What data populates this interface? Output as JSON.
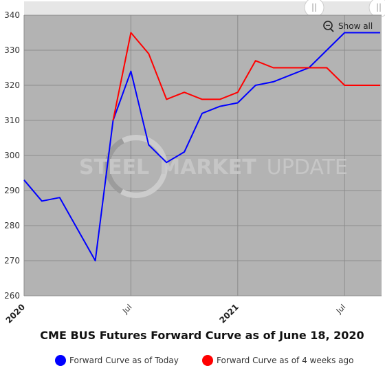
{
  "chart_data": {
    "type": "line",
    "title": "CME BUS Futures Forward Curve as of June 18, 2020",
    "xlabel": "",
    "ylabel": "",
    "ylim": [
      260,
      340
    ],
    "y_ticks": [
      "260",
      "270",
      "280",
      "290",
      "300",
      "310",
      "320",
      "330",
      "340"
    ],
    "x_ticks": [
      {
        "label": "2020",
        "bold": true
      },
      {
        "label": "Jul",
        "bold": false
      },
      {
        "label": "2021",
        "bold": true
      },
      {
        "label": "Jul",
        "bold": false
      }
    ],
    "x_range": [
      "2020-01",
      "2021-09"
    ],
    "grid": true,
    "legend_position": "bottom",
    "series": [
      {
        "name": "Forward Curve as of Today",
        "color": "#0000ff",
        "points": [
          [
            "2020-01",
            293
          ],
          [
            "2020-02",
            287
          ],
          [
            "2020-03",
            288
          ],
          [
            "2020-04",
            279
          ],
          [
            "2020-05",
            270
          ],
          [
            "2020-06",
            310
          ],
          [
            "2020-07",
            324
          ],
          [
            "2020-08",
            303
          ],
          [
            "2020-09",
            298
          ],
          [
            "2020-10",
            301
          ],
          [
            "2020-11",
            312
          ],
          [
            "2020-12",
            314
          ],
          [
            "2021-01",
            315
          ],
          [
            "2021-02",
            320
          ],
          [
            "2021-03",
            321
          ],
          [
            "2021-04",
            323
          ],
          [
            "2021-05",
            325
          ],
          [
            "2021-06",
            330
          ],
          [
            "2021-07",
            335
          ],
          [
            "2021-08",
            335
          ],
          [
            "2021-09",
            335
          ]
        ]
      },
      {
        "name": "Forward Curve as of 4 weeks ago",
        "color": "#ff0000",
        "points": [
          [
            "2020-06",
            310
          ],
          [
            "2020-07",
            335
          ],
          [
            "2020-08",
            329
          ],
          [
            "2020-09",
            316
          ],
          [
            "2020-10",
            318
          ],
          [
            "2020-11",
            316
          ],
          [
            "2020-12",
            316
          ],
          [
            "2021-01",
            318
          ],
          [
            "2021-02",
            327
          ],
          [
            "2021-03",
            325
          ],
          [
            "2021-04",
            325
          ],
          [
            "2021-05",
            325
          ],
          [
            "2021-06",
            325
          ],
          [
            "2021-07",
            320
          ],
          [
            "2021-08",
            320
          ],
          [
            "2021-09",
            320
          ]
        ]
      }
    ]
  },
  "controls": {
    "show_all_label": "Show all",
    "zoom_icon": "zoom-out-icon",
    "handle_left_icon": "grip-icon",
    "handle_right_icon": "grip-icon"
  },
  "watermark": {
    "bold_text": "STEEL",
    "bold_text_2": "MARKET",
    "thin_text": "UPDATE"
  },
  "colors": {
    "plot_background": "#b3b3b3",
    "navigator_background": "#e6e6e6",
    "grid": "#8c8c8c"
  }
}
